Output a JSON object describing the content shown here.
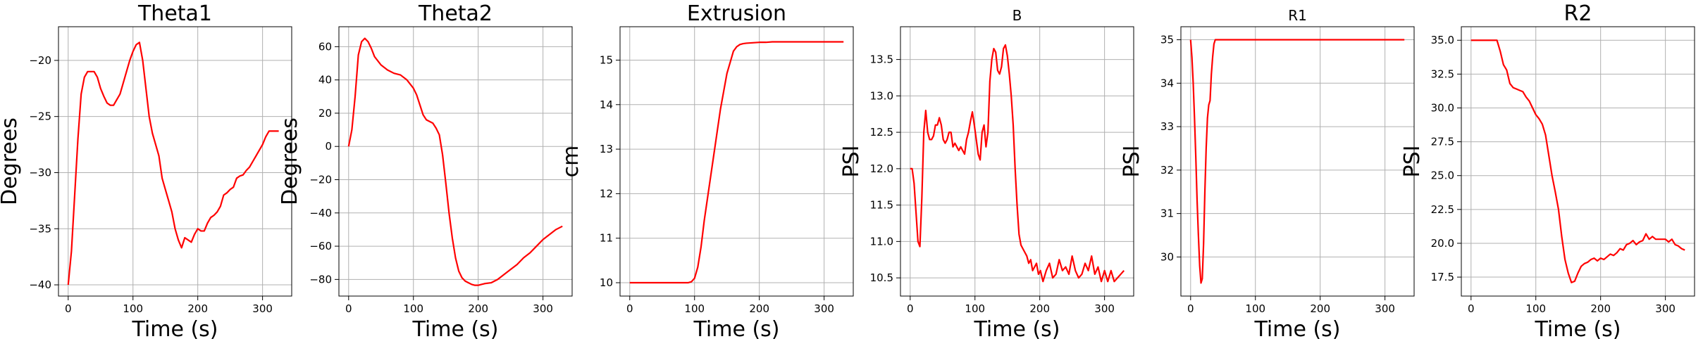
{
  "colors": {
    "line": "#ff0000",
    "grid": "#b0b0b0"
  },
  "chart_data": [
    {
      "type": "line",
      "title": "Theta1",
      "xlabel": "Time (s)",
      "ylabel": "Degrees",
      "xlim": [
        -15,
        345
      ],
      "ylim": [
        -41,
        -17
      ],
      "xticks": [
        0,
        100,
        200,
        300
      ],
      "yticks": [
        -40,
        -35,
        -30,
        -25,
        -20
      ],
      "grid": true,
      "series": [
        {
          "x": [
            0,
            5,
            10,
            15,
            20,
            25,
            30,
            35,
            40,
            45,
            50,
            55,
            60,
            65,
            70,
            75,
            80,
            85,
            90,
            95,
            100,
            105,
            110,
            115,
            120,
            125,
            130,
            135,
            140,
            145,
            150,
            155,
            160,
            165,
            170,
            175,
            180,
            185,
            190,
            195,
            200,
            205,
            210,
            215,
            220,
            225,
            230,
            235,
            240,
            245,
            250,
            255,
            260,
            265,
            270,
            275,
            280,
            285,
            290,
            295,
            300,
            305,
            310,
            315,
            320,
            325
          ],
          "y": [
            -40,
            -37,
            -32,
            -27,
            -23,
            -21.5,
            -21,
            -21,
            -21,
            -21.5,
            -22.5,
            -23.2,
            -23.8,
            -24,
            -24,
            -23.5,
            -23,
            -22,
            -21,
            -20,
            -19.2,
            -18.6,
            -18.4,
            -20,
            -22.5,
            -25,
            -26.5,
            -27.5,
            -28.5,
            -30.5,
            -31.5,
            -32.5,
            -33.5,
            -35,
            -36,
            -36.7,
            -35.8,
            -36,
            -36.2,
            -35.5,
            -35,
            -35.2,
            -35.2,
            -34.5,
            -34,
            -33.8,
            -33.5,
            -33,
            -32,
            -31.8,
            -31.5,
            -31.3,
            -30.5,
            -30.3,
            -30.2,
            -29.8,
            -29.5,
            -29,
            -28.5,
            -28,
            -27.5,
            -26.8,
            -26.3,
            -26.3,
            -26.3,
            -26.3
          ]
        }
      ]
    },
    {
      "type": "line",
      "title": "Theta2",
      "xlabel": "Time (s)",
      "ylabel": "Degrees",
      "xlim": [
        -15,
        345
      ],
      "ylim": [
        -90,
        72
      ],
      "xticks": [
        0,
        100,
        200,
        300
      ],
      "yticks": [
        -80,
        -60,
        -40,
        -20,
        0,
        20,
        40,
        60
      ],
      "grid": true,
      "series": [
        {
          "x": [
            0,
            5,
            10,
            15,
            20,
            25,
            30,
            35,
            40,
            50,
            60,
            70,
            80,
            90,
            100,
            105,
            110,
            115,
            120,
            125,
            130,
            135,
            140,
            145,
            150,
            155,
            160,
            165,
            170,
            175,
            180,
            185,
            190,
            195,
            200,
            205,
            210,
            220,
            230,
            240,
            250,
            260,
            270,
            280,
            290,
            300,
            310,
            320,
            330
          ],
          "y": [
            0,
            10,
            30,
            55,
            63,
            65,
            63,
            59,
            54,
            49,
            46,
            44,
            43,
            40,
            35,
            31,
            25,
            19,
            16,
            15,
            14,
            11,
            7,
            -5,
            -22,
            -40,
            -55,
            -67,
            -75,
            -79,
            -81,
            -82,
            -83,
            -83.5,
            -83.5,
            -83,
            -82.5,
            -82,
            -80,
            -77,
            -74,
            -71,
            -67,
            -64,
            -60,
            -56,
            -53,
            -50,
            -48
          ]
        }
      ]
    },
    {
      "type": "line",
      "title": "Extrusion",
      "xlabel": "Time (s)",
      "ylabel": "cm",
      "xlim": [
        -15,
        345
      ],
      "ylim": [
        9.7,
        15.75
      ],
      "xticks": [
        0,
        100,
        200,
        300
      ],
      "yticks": [
        10,
        11,
        12,
        13,
        14,
        15
      ],
      "grid": true,
      "series": [
        {
          "x": [
            0,
            20,
            40,
            60,
            80,
            90,
            95,
            100,
            105,
            110,
            115,
            120,
            125,
            130,
            135,
            140,
            145,
            150,
            155,
            160,
            165,
            170,
            175,
            180,
            190,
            200,
            210,
            220,
            240,
            260,
            280,
            300,
            320,
            330
          ],
          "y": [
            10,
            10,
            10,
            10,
            10,
            10,
            10.02,
            10.1,
            10.35,
            10.8,
            11.4,
            11.9,
            12.4,
            12.9,
            13.4,
            13.9,
            14.3,
            14.7,
            14.95,
            15.2,
            15.3,
            15.35,
            15.37,
            15.38,
            15.39,
            15.4,
            15.4,
            15.41,
            15.41,
            15.41,
            15.41,
            15.41,
            15.41,
            15.41
          ]
        }
      ]
    },
    {
      "type": "line",
      "title": "B",
      "xlabel": "Time (s)",
      "ylabel": "PSI",
      "xlim": [
        -15,
        345
      ],
      "ylim": [
        10.25,
        13.95
      ],
      "xticks": [
        0,
        100,
        200,
        300
      ],
      "yticks": [
        10.5,
        11.0,
        11.5,
        12.0,
        12.5,
        13.0,
        13.5
      ],
      "grid": true,
      "series": [
        {
          "x": [
            0,
            3,
            6,
            9,
            12,
            15,
            18,
            21,
            24,
            27,
            30,
            33,
            36,
            39,
            42,
            45,
            48,
            51,
            54,
            57,
            60,
            63,
            66,
            69,
            72,
            75,
            78,
            81,
            84,
            87,
            90,
            93,
            96,
            99,
            102,
            105,
            108,
            111,
            114,
            117,
            120,
            123,
            126,
            129,
            132,
            135,
            138,
            141,
            144,
            147,
            150,
            153,
            156,
            159,
            162,
            165,
            168,
            171,
            174,
            177,
            180,
            183,
            186,
            189,
            192,
            195,
            198,
            201,
            205,
            210,
            215,
            220,
            225,
            230,
            235,
            240,
            245,
            250,
            255,
            260,
            265,
            270,
            275,
            280,
            285,
            290,
            295,
            300,
            305,
            310,
            315,
            320,
            325,
            330
          ],
          "y": [
            12.0,
            12.0,
            11.8,
            11.4,
            11.0,
            10.93,
            11.6,
            12.5,
            12.8,
            12.5,
            12.4,
            12.4,
            12.45,
            12.6,
            12.6,
            12.7,
            12.6,
            12.4,
            12.35,
            12.4,
            12.5,
            12.5,
            12.3,
            12.35,
            12.3,
            12.25,
            12.3,
            12.25,
            12.2,
            12.4,
            12.5,
            12.65,
            12.78,
            12.6,
            12.4,
            12.2,
            12.12,
            12.5,
            12.6,
            12.3,
            12.5,
            13.2,
            13.5,
            13.65,
            13.6,
            13.35,
            13.3,
            13.4,
            13.65,
            13.7,
            13.55,
            13.3,
            13.0,
            12.6,
            12.0,
            11.5,
            11.1,
            10.95,
            10.9,
            10.85,
            10.8,
            10.7,
            10.75,
            10.6,
            10.65,
            10.7,
            10.55,
            10.6,
            10.45,
            10.6,
            10.7,
            10.5,
            10.55,
            10.75,
            10.6,
            10.65,
            10.55,
            10.8,
            10.6,
            10.5,
            10.55,
            10.7,
            10.6,
            10.8,
            10.55,
            10.65,
            10.45,
            10.6,
            10.45,
            10.6,
            10.45,
            10.5,
            10.55,
            10.6
          ]
        }
      ]
    },
    {
      "type": "line",
      "title": "R1",
      "xlabel": "Time (s)",
      "ylabel": "PSI",
      "xlim": [
        -15,
        345
      ],
      "ylim": [
        29.1,
        35.3
      ],
      "xticks": [
        0,
        100,
        200,
        300
      ],
      "yticks": [
        30,
        31,
        32,
        33,
        34,
        35
      ],
      "grid": true,
      "series": [
        {
          "x": [
            0,
            2,
            4,
            6,
            8,
            10,
            12,
            14,
            16,
            18,
            20,
            22,
            24,
            26,
            28,
            30,
            32,
            34,
            36,
            38,
            40,
            42,
            45,
            50,
            60,
            80,
            100,
            150,
            200,
            250,
            300,
            330
          ],
          "y": [
            35,
            34.6,
            34.0,
            33.2,
            32.3,
            31.3,
            30.5,
            29.8,
            29.4,
            29.5,
            30.3,
            31.5,
            32.5,
            33.2,
            33.5,
            33.6,
            34.2,
            34.6,
            34.9,
            35,
            35,
            35,
            35,
            35,
            35,
            35,
            35,
            35,
            35,
            35,
            35,
            35
          ]
        }
      ]
    },
    {
      "type": "line",
      "title": "R2",
      "xlabel": "Time (s)",
      "ylabel": "PSI",
      "xlim": [
        -15,
        345
      ],
      "ylim": [
        16.1,
        36.0
      ],
      "xticks": [
        0,
        100,
        200,
        300
      ],
      "yticks": [
        17.5,
        20.0,
        22.5,
        25.0,
        27.5,
        30.0,
        32.5,
        35.0
      ],
      "grid": true,
      "series": [
        {
          "x": [
            0,
            10,
            20,
            30,
            40,
            45,
            50,
            55,
            60,
            65,
            70,
            75,
            80,
            85,
            90,
            95,
            100,
            105,
            110,
            115,
            120,
            125,
            130,
            135,
            140,
            145,
            150,
            155,
            160,
            165,
            170,
            175,
            180,
            185,
            190,
            195,
            200,
            205,
            210,
            215,
            220,
            225,
            230,
            235,
            240,
            245,
            250,
            255,
            260,
            265,
            270,
            275,
            280,
            285,
            290,
            295,
            300,
            305,
            310,
            315,
            320,
            325,
            330
          ],
          "y": [
            35,
            35,
            35,
            35,
            35,
            34.2,
            33.2,
            32.8,
            31.8,
            31.5,
            31.4,
            31.3,
            31.2,
            30.8,
            30.5,
            30.0,
            29.5,
            29.2,
            28.8,
            28.0,
            26.5,
            25.0,
            23.8,
            22.5,
            20.5,
            18.8,
            17.8,
            17.1,
            17.2,
            17.8,
            18.3,
            18.5,
            18.6,
            18.8,
            18.9,
            18.7,
            18.9,
            18.8,
            19.0,
            19.2,
            19.1,
            19.3,
            19.6,
            19.5,
            19.9,
            20.0,
            20.2,
            19.9,
            20.1,
            20.2,
            20.7,
            20.3,
            20.5,
            20.3,
            20.3,
            20.3,
            20.3,
            20.1,
            20.3,
            19.9,
            19.8,
            19.6,
            19.5
          ]
        }
      ]
    }
  ]
}
